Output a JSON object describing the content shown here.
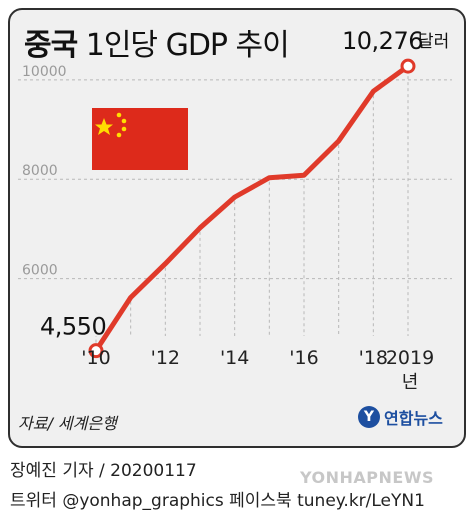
{
  "title": {
    "bold": "중국",
    "rest": "1인당 GDP 추이"
  },
  "chart_data": {
    "type": "line",
    "title": "중국 1인당 GDP 추이",
    "x": [
      2010,
      2011,
      2012,
      2013,
      2014,
      2015,
      2016,
      2017,
      2018,
      2019
    ],
    "x_tick_labels": [
      "'10",
      "'12",
      "'14",
      "'16",
      "'18",
      "2019"
    ],
    "x_unit": "년",
    "series": [
      {
        "values": [
          4550,
          5620,
          6300,
          7020,
          7640,
          8030,
          8080,
          8770,
          9770,
          10276
        ],
        "color": "#e03a2a"
      }
    ],
    "ylim": [
      4000,
      10500
    ],
    "y_ticks": [
      6000,
      8000,
      10000
    ],
    "annotations": [
      {
        "text": "4,550",
        "x": 2010
      },
      {
        "text": "10,276",
        "unit": "달러",
        "x": 2019
      }
    ],
    "grid": "dashed horizontal and vertical"
  },
  "source": "자료/ 세계은행",
  "logo": {
    "mark": "Y",
    "text": "연합뉴스"
  },
  "reporter": "장예진 기자 / 20200117",
  "twitter": "트위터 @yonhap_graphics  페이스북 tuney.kr/LeYN1",
  "watermark": "YONHAPNEWS",
  "flag_icon": "china-flag-icon",
  "colors": {
    "line": "#e03a2a",
    "panel": "#f0f0f0",
    "axis_text": "#9a9a9a"
  }
}
